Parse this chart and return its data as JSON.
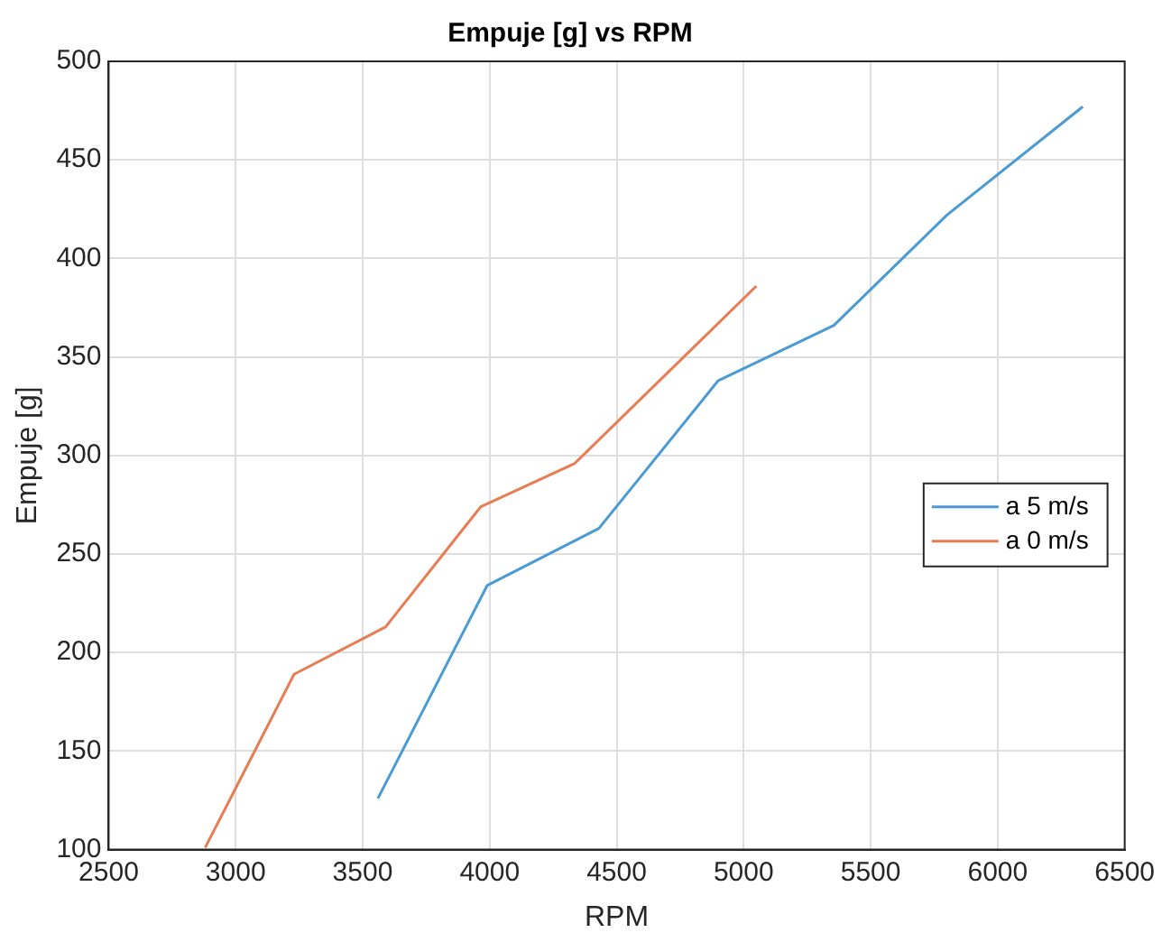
{
  "chart_data": {
    "type": "line",
    "title": "Empuje [g] vs RPM",
    "xlabel": "RPM",
    "ylabel": "Empuje [g]",
    "series": [
      {
        "name": "a 5 m/s",
        "color": "#4a9bd4",
        "x": [
          3560,
          3990,
          4430,
          4900,
          5355,
          5800,
          6335
        ],
        "values": [
          126,
          234,
          263,
          338,
          366,
          422,
          477
        ]
      },
      {
        "name": "a 0 m/s",
        "color": "#e87c52",
        "x": [
          2880,
          3230,
          3590,
          3965,
          4335,
          5050
        ],
        "values": [
          101,
          189,
          213,
          274,
          296,
          386
        ]
      }
    ],
    "xlim": [
      2500,
      6500
    ],
    "xticks": [
      2500,
      3000,
      3500,
      4000,
      4500,
      5000,
      5500,
      6000,
      6500
    ],
    "ylim": [
      100,
      500
    ],
    "yticks": [
      100,
      150,
      200,
      250,
      300,
      350,
      400,
      450,
      500
    ],
    "grid": true,
    "legend": "right",
    "marker": "none",
    "line_style": "solid"
  }
}
